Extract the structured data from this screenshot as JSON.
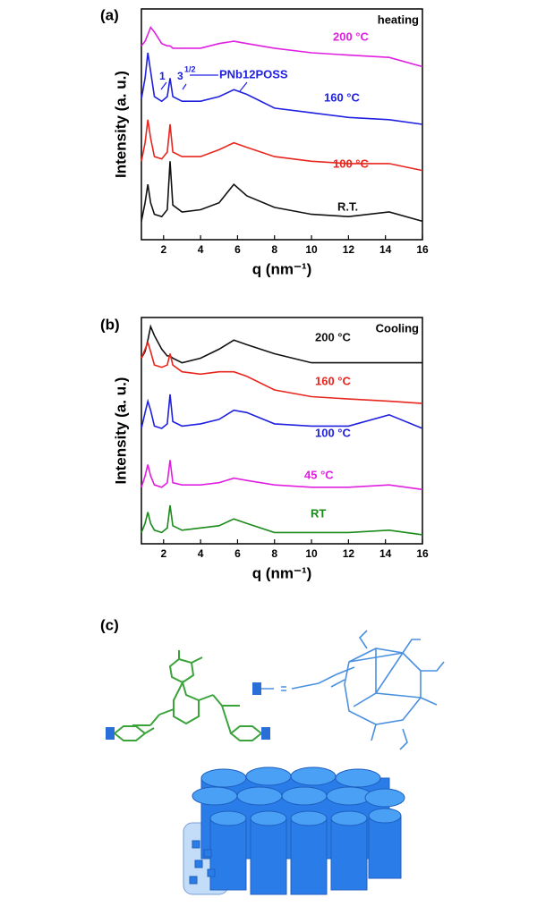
{
  "panel_labels": [
    "(a)",
    "(b)",
    "(c)"
  ],
  "chart_data": [
    {
      "type": "line",
      "annotation": "heating",
      "ylabel": "Intensity (a. u.)",
      "xlabel": "q (nm⁻¹)",
      "peak_labels": [
        "1",
        "3",
        "1/2",
        "PNb12POSS"
      ],
      "x": [
        0.8,
        1.0,
        1.15,
        1.3,
        1.5,
        1.9,
        2.2,
        2.35,
        2.5,
        3,
        4,
        5,
        5.8,
        6.5,
        8,
        10,
        12,
        14.2,
        16
      ],
      "xlim": [
        0.8,
        16
      ],
      "xticks": [
        2,
        4,
        6,
        8,
        10,
        12,
        14,
        16
      ],
      "ylim": [
        0,
        10
      ],
      "series": [
        {
          "name": "200 °C",
          "color": "#e020e0",
          "values": [
            8.4,
            8.6,
            8.9,
            9.2,
            9.0,
            8.5,
            8.4,
            8.4,
            8.3,
            8.3,
            8.3,
            8.5,
            8.6,
            8.5,
            8.3,
            8.1,
            8.0,
            7.9,
            7.5
          ]
        },
        {
          "name": "160 °C",
          "color": "#2020e0",
          "values": [
            6.1,
            7.0,
            8.1,
            7.3,
            6.2,
            6.0,
            6.2,
            7.0,
            6.2,
            6.0,
            6.0,
            6.2,
            6.5,
            6.3,
            5.7,
            5.5,
            5.3,
            5.2,
            5.0
          ]
        },
        {
          "name": "100 °C",
          "color": "#e8261e",
          "values": [
            3.4,
            4.2,
            5.2,
            4.4,
            3.6,
            3.5,
            3.8,
            5.0,
            3.8,
            3.6,
            3.6,
            3.9,
            4.2,
            4.0,
            3.6,
            3.4,
            3.3,
            3.3,
            3.0
          ]
        },
        {
          "name": "R.T.",
          "color": "#111111",
          "values": [
            0.8,
            1.6,
            2.4,
            1.6,
            1.1,
            1.0,
            1.3,
            3.4,
            1.5,
            1.2,
            1.3,
            1.6,
            2.4,
            1.9,
            1.4,
            1.1,
            1.0,
            1.2,
            0.8
          ]
        }
      ]
    },
    {
      "type": "line",
      "annotation": "Cooling",
      "ylabel": "Intensity (a. u.)",
      "xlabel": "q (nm⁻¹)",
      "x": [
        0.8,
        1.0,
        1.15,
        1.3,
        1.5,
        1.9,
        2.2,
        2.35,
        2.5,
        3,
        4,
        5,
        5.8,
        6.5,
        8,
        10,
        12,
        14.2,
        16
      ],
      "xlim": [
        0.8,
        16
      ],
      "xticks": [
        2,
        4,
        6,
        8,
        10,
        12,
        14,
        16
      ],
      "ylim": [
        0,
        10
      ],
      "series": [
        {
          "name": "200 °C",
          "color": "#111111",
          "values": [
            8.2,
            8.5,
            9.0,
            9.6,
            9.2,
            8.6,
            8.3,
            8.3,
            8.2,
            8.0,
            8.2,
            8.6,
            9.0,
            8.8,
            8.4,
            8.0,
            8.0,
            8.0,
            8.0
          ]
        },
        {
          "name": "160 °C",
          "color": "#e8261e",
          "values": [
            8.2,
            8.6,
            8.9,
            8.5,
            7.9,
            7.8,
            7.9,
            8.4,
            7.9,
            7.6,
            7.5,
            7.6,
            7.6,
            7.4,
            6.8,
            6.5,
            6.4,
            6.3,
            6.2
          ]
        },
        {
          "name": "100 °C",
          "color": "#2020e0",
          "values": [
            5.1,
            5.8,
            6.3,
            5.9,
            5.2,
            5.1,
            5.3,
            6.6,
            5.4,
            5.2,
            5.3,
            5.5,
            5.9,
            5.8,
            5.3,
            5.2,
            5.2,
            5.7,
            5.1
          ]
        },
        {
          "name": "45 °C",
          "color": "#e020e0",
          "values": [
            2.5,
            3.0,
            3.5,
            3.0,
            2.6,
            2.5,
            2.7,
            3.7,
            2.7,
            2.6,
            2.6,
            2.7,
            2.9,
            2.8,
            2.6,
            2.5,
            2.5,
            2.6,
            2.4
          ]
        },
        {
          "name": "RT",
          "color": "#1a8a1a",
          "values": [
            0.5,
            0.9,
            1.4,
            0.9,
            0.6,
            0.5,
            0.7,
            1.7,
            0.8,
            0.6,
            0.7,
            0.8,
            1.1,
            0.9,
            0.5,
            0.5,
            0.5,
            0.6,
            0.4
          ]
        }
      ]
    }
  ]
}
